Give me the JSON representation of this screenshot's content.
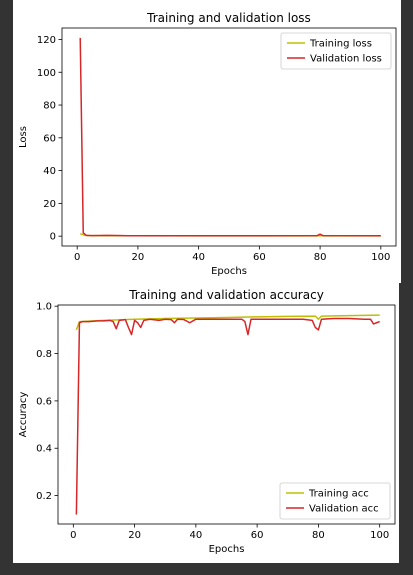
{
  "chart_data": [
    {
      "type": "line",
      "title": "Training and validation loss",
      "xlabel": "Epochs",
      "ylabel": "Loss",
      "xlim": [
        -5,
        105
      ],
      "ylim": [
        -6,
        127
      ],
      "xticks": [
        0,
        20,
        40,
        60,
        80,
        100
      ],
      "yticks": [
        0,
        20,
        40,
        60,
        80,
        100,
        120
      ],
      "legend_position": "top-right",
      "grid": false,
      "series": [
        {
          "name": "Training loss",
          "color": "#bfbf00",
          "x": [
            1,
            2,
            3,
            5,
            10,
            20,
            40,
            60,
            79,
            80,
            81,
            100
          ],
          "y": [
            1.5,
            0.8,
            0.4,
            0.3,
            0.25,
            0.22,
            0.2,
            0.18,
            0.2,
            0.3,
            0.2,
            0.15
          ]
        },
        {
          "name": "Validation loss",
          "color": "#d62728",
          "x": [
            1,
            2,
            3,
            4,
            5,
            10,
            15,
            20,
            40,
            60,
            79,
            80,
            81,
            100
          ],
          "y": [
            121,
            2,
            0.5,
            0.4,
            0.3,
            0.45,
            0.3,
            0.25,
            0.25,
            0.25,
            0.3,
            1.2,
            0.3,
            0.25
          ]
        }
      ]
    },
    {
      "type": "line",
      "title": "Training and validation accuracy",
      "xlabel": "Epochs",
      "ylabel": "Accuracy",
      "xlim": [
        -5,
        105
      ],
      "ylim": [
        0.08,
        1.005
      ],
      "xticks": [
        0,
        20,
        40,
        60,
        80,
        100
      ],
      "yticks": [
        0.2,
        0.4,
        0.6,
        0.8,
        1.0
      ],
      "ytick_labels": [
        "0.2",
        "0.4",
        "0.6",
        "0.8",
        "1.0"
      ],
      "legend_position": "bottom-right",
      "grid": false,
      "series": [
        {
          "name": "Training acc",
          "color": "#bfbf00",
          "x": [
            1,
            2,
            5,
            10,
            20,
            30,
            40,
            50,
            60,
            70,
            79,
            80,
            81,
            90,
            100
          ],
          "y": [
            0.9,
            0.935,
            0.937,
            0.94,
            0.945,
            0.948,
            0.95,
            0.952,
            0.955,
            0.957,
            0.958,
            0.945,
            0.958,
            0.96,
            0.962
          ]
        },
        {
          "name": "Validation acc",
          "color": "#d62728",
          "x": [
            1,
            2,
            3,
            5,
            8,
            10,
            12,
            13,
            14,
            15,
            17,
            18,
            19,
            20,
            21,
            22,
            23,
            25,
            28,
            30,
            32,
            33,
            34,
            36,
            38,
            40,
            45,
            50,
            55,
            56,
            57,
            58,
            60,
            65,
            70,
            75,
            78,
            79,
            80,
            81,
            85,
            90,
            95,
            97,
            98,
            99,
            100
          ],
          "y": [
            0.12,
            0.93,
            0.935,
            0.935,
            0.938,
            0.938,
            0.94,
            0.935,
            0.905,
            0.94,
            0.943,
            0.91,
            0.88,
            0.94,
            0.93,
            0.91,
            0.94,
            0.945,
            0.94,
            0.945,
            0.943,
            0.93,
            0.945,
            0.944,
            0.93,
            0.945,
            0.945,
            0.945,
            0.945,
            0.935,
            0.88,
            0.945,
            0.945,
            0.945,
            0.945,
            0.945,
            0.94,
            0.91,
            0.9,
            0.945,
            0.948,
            0.948,
            0.945,
            0.945,
            0.925,
            0.93,
            0.935
          ]
        }
      ]
    }
  ]
}
